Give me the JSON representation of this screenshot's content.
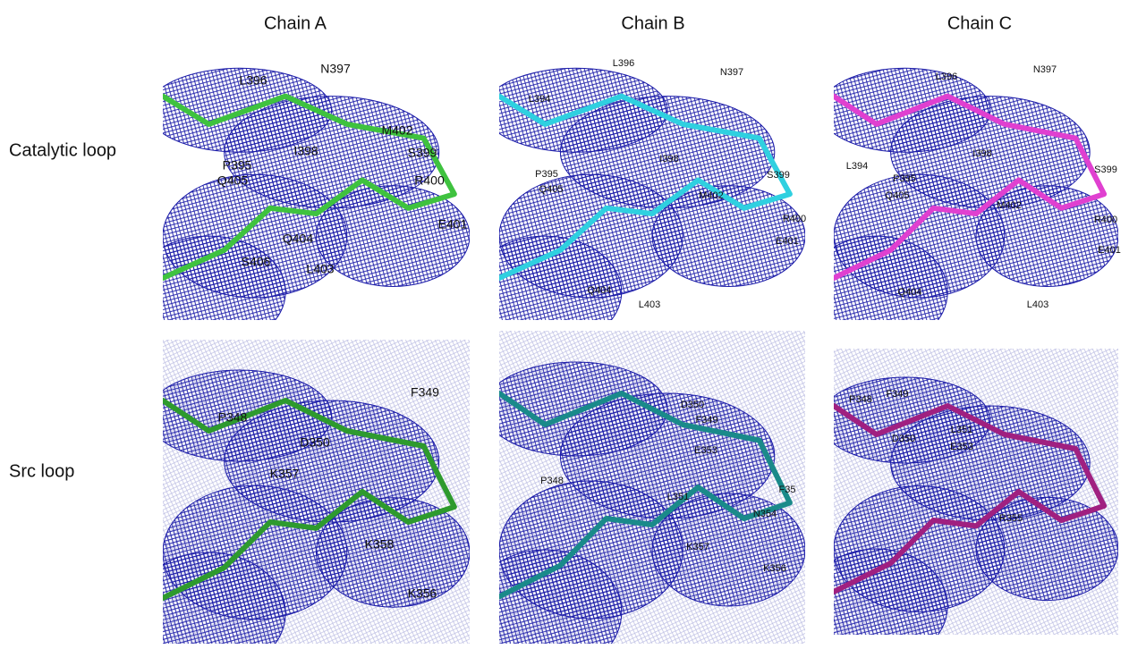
{
  "columns": [
    "Chain A",
    "Chain B",
    "Chain C"
  ],
  "rows": [
    "Catalytic loop",
    "Src loop"
  ],
  "panels": [
    {
      "labels": [
        "L396",
        "N397",
        "M402",
        "S399",
        "I398",
        "P395",
        "Q405",
        "R400",
        "E401",
        "Q404",
        "S406",
        "L403"
      ]
    },
    {
      "labels": [
        "L396",
        "N397",
        "L394",
        "I398",
        "S399",
        "P395",
        "Q405",
        "M402",
        "R400",
        "E401",
        "Q404",
        "L403"
      ]
    },
    {
      "labels": [
        "L396",
        "N397",
        "L394",
        "I398",
        "S399",
        "P395",
        "Q405",
        "M402",
        "R400",
        "E401",
        "Q404",
        "L403"
      ]
    },
    {
      "labels": [
        "F349",
        "P348",
        "D350",
        "K357",
        "K358",
        "K356"
      ]
    },
    {
      "labels": [
        "D350",
        "F349",
        "E353",
        "P348",
        "F35",
        "L351",
        "N354",
        "K357",
        "K356"
      ]
    },
    {
      "labels": [
        "P348",
        "F349",
        "L351",
        "D350",
        "E353",
        "R355"
      ]
    }
  ]
}
